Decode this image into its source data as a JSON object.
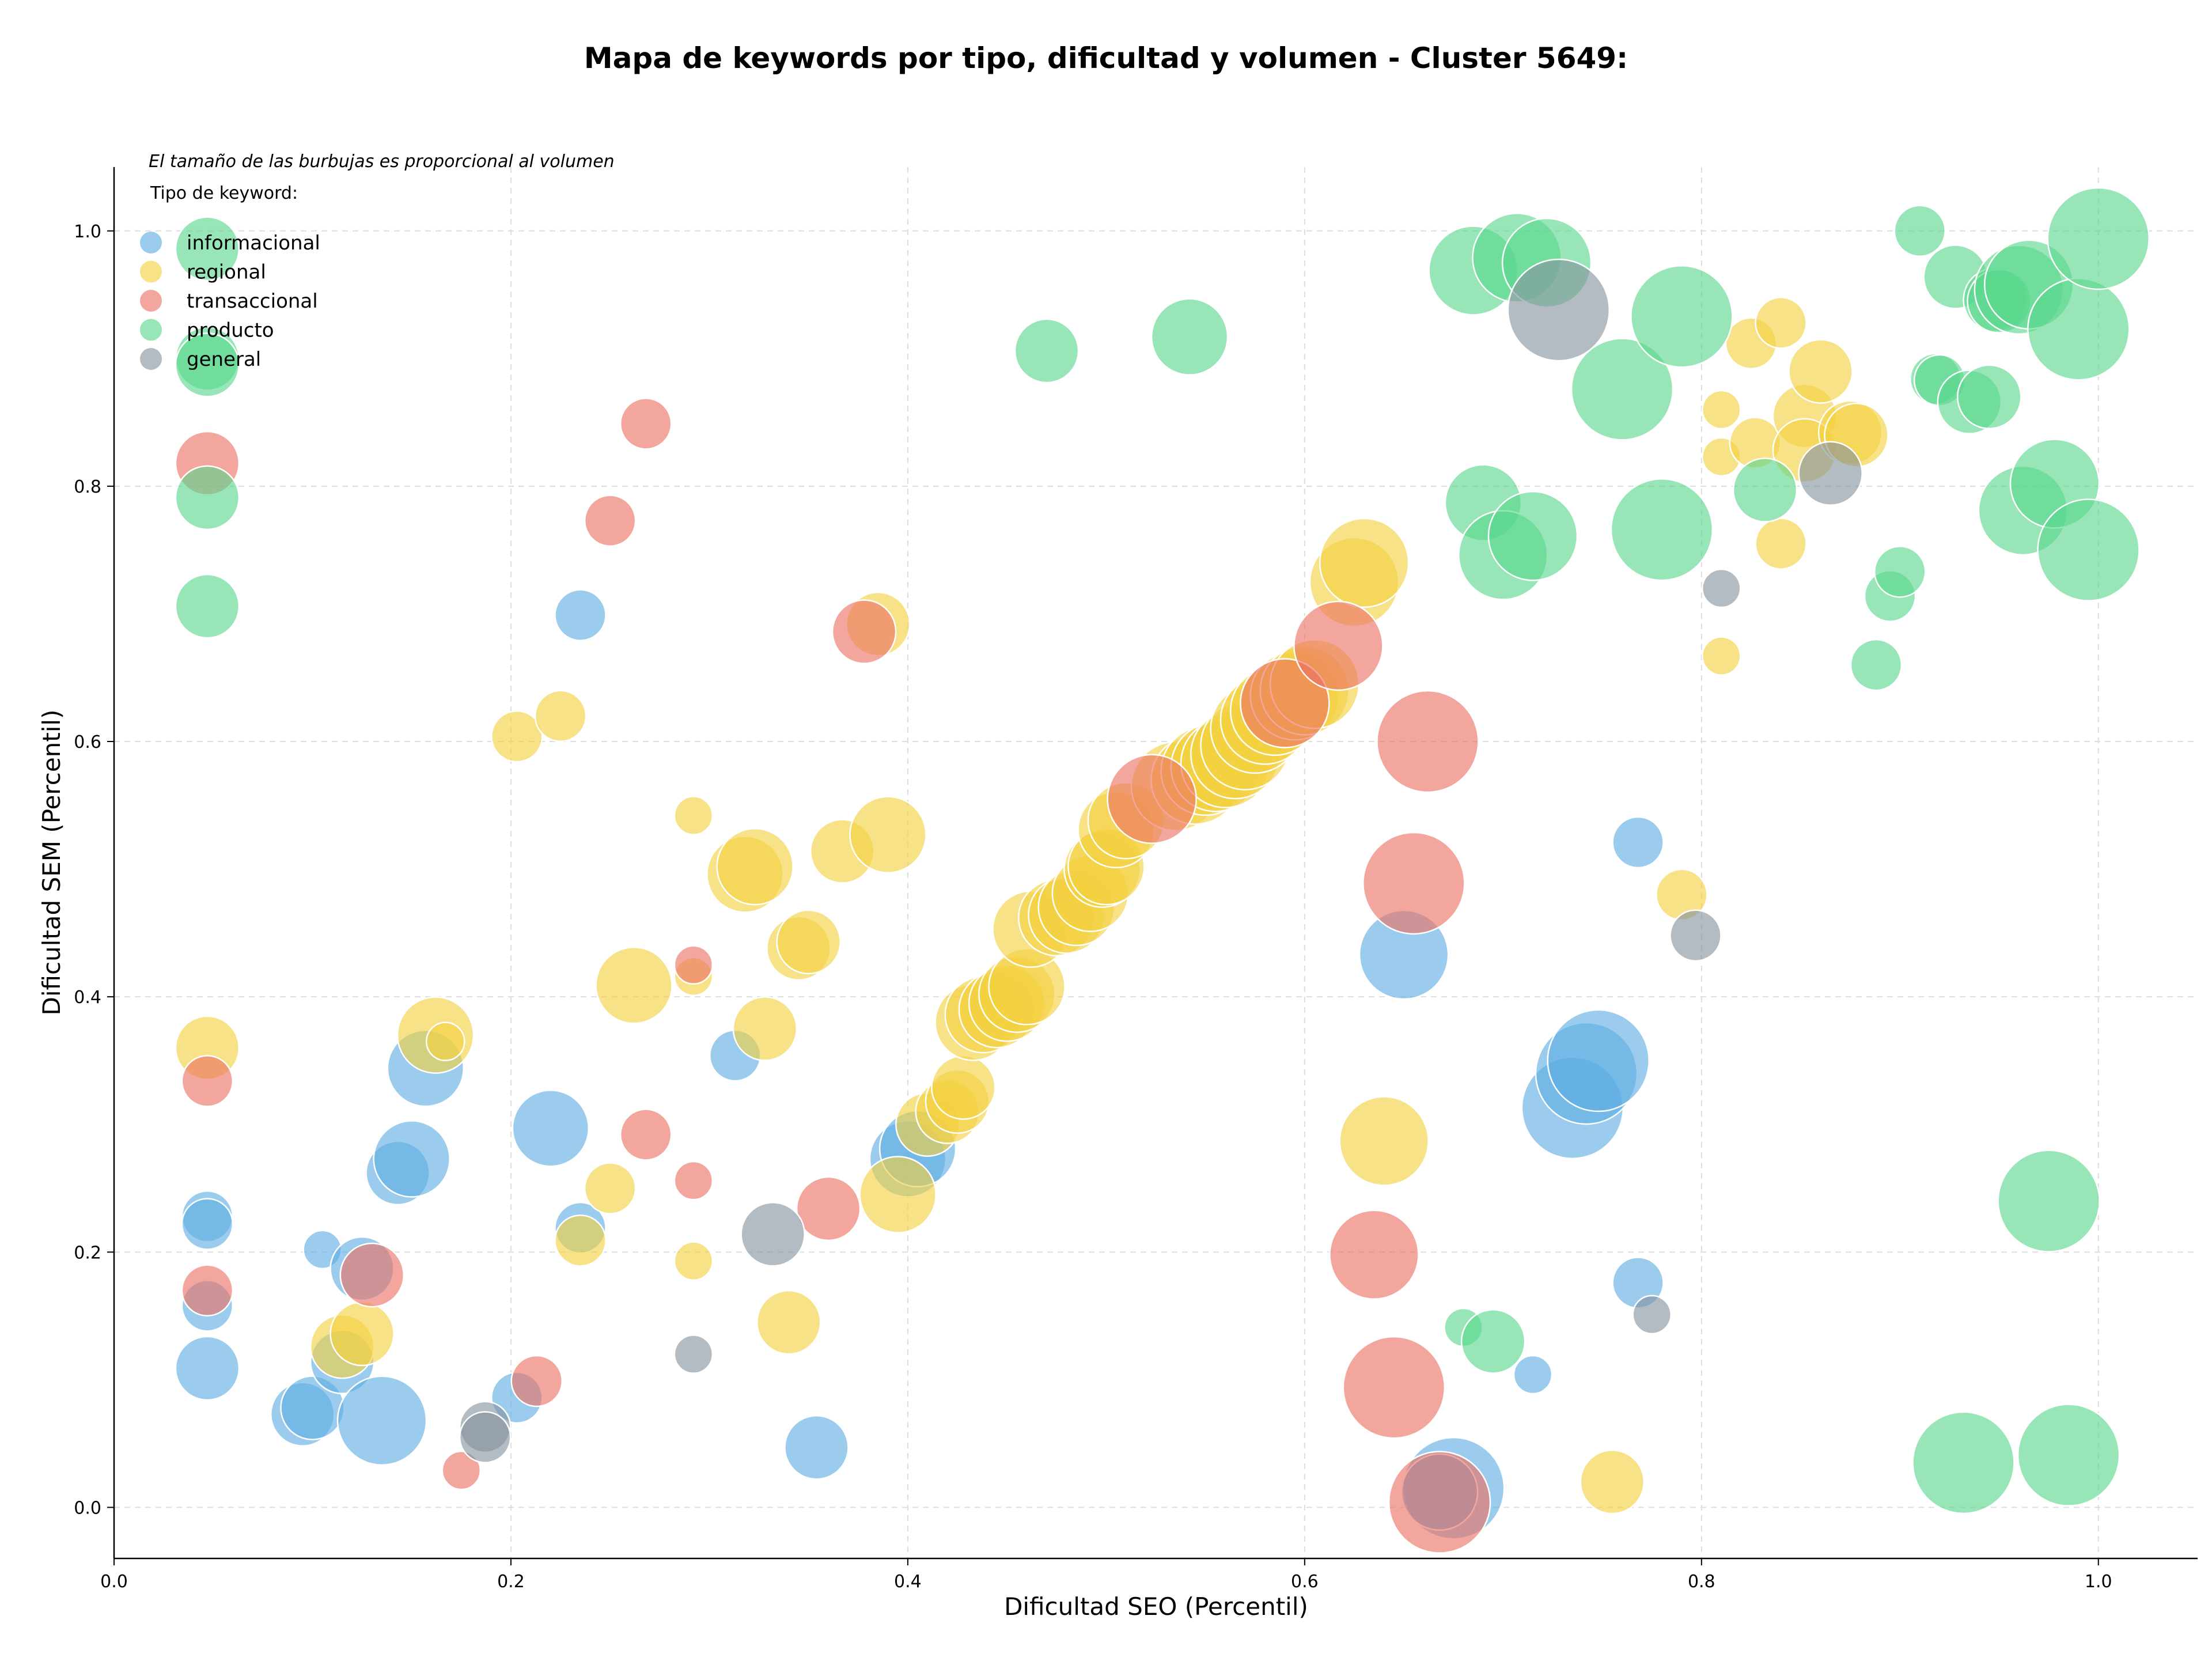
{
  "chart_data": {
    "type": "scatter",
    "title": "Mapa de keywords por tipo, dificultad y volumen - Cluster 5649:",
    "annotation": "El tamaño de las burbujas es proporcional al volumen",
    "legend_title": "Tipo de keyword:",
    "legend_position": "top-left",
    "xlabel": "Dificultad SEO (Percentil)",
    "ylabel": "Dificultad SEM (Percentil)",
    "xlim": [
      0.0,
      1.05
    ],
    "ylim": [
      -0.04,
      1.05
    ],
    "xticks": [
      "0.0",
      "0.2",
      "0.4",
      "0.6",
      "0.8",
      "1.0"
    ],
    "yticks": [
      "0.0",
      "0.2",
      "0.4",
      "0.6",
      "0.8",
      "1.0"
    ],
    "grid": true,
    "series": [
      {
        "name": "informacional",
        "color": "#5DADE2",
        "points": [
          [
            0.047,
            0.228,
            2
          ],
          [
            0.047,
            0.222,
            2
          ],
          [
            0.047,
            0.158,
            2
          ],
          [
            0.047,
            0.109,
            3
          ],
          [
            0.105,
            0.202,
            1
          ],
          [
            0.095,
            0.073,
            3
          ],
          [
            0.1,
            0.078,
            3
          ],
          [
            0.115,
            0.114,
            3
          ],
          [
            0.125,
            0.187,
            3
          ],
          [
            0.135,
            0.068,
            5
          ],
          [
            0.143,
            0.262,
            3
          ],
          [
            0.15,
            0.273,
            4
          ],
          [
            0.157,
            0.344,
            4
          ],
          [
            0.22,
            0.297,
            4
          ],
          [
            0.235,
            0.219,
            2
          ],
          [
            0.235,
            0.699,
            2
          ],
          [
            0.203,
            0.086,
            2
          ],
          [
            0.313,
            0.354,
            2
          ],
          [
            0.354,
            0.047,
            3
          ],
          [
            0.4,
            0.273,
            4
          ],
          [
            0.405,
            0.281,
            4
          ],
          [
            0.65,
            0.433,
            5
          ],
          [
            0.675,
            0.015,
            6
          ],
          [
            0.668,
            0.012,
            4
          ],
          [
            0.715,
            0.104,
            1
          ],
          [
            0.735,
            0.313,
            6
          ],
          [
            0.742,
            0.34,
            6
          ],
          [
            0.748,
            0.35,
            6
          ],
          [
            0.768,
            0.521,
            2
          ],
          [
            0.768,
            0.176,
            2
          ]
        ]
      },
      {
        "name": "regional",
        "color": "#F4D03F",
        "points": [
          [
            0.047,
            0.36,
            3
          ],
          [
            0.115,
            0.126,
            3
          ],
          [
            0.125,
            0.136,
            3
          ],
          [
            0.162,
            0.37,
            4
          ],
          [
            0.167,
            0.365,
            1
          ],
          [
            0.203,
            0.604,
            2
          ],
          [
            0.225,
            0.62,
            2
          ],
          [
            0.235,
            0.209,
            2
          ],
          [
            0.25,
            0.25,
            2
          ],
          [
            0.262,
            0.409,
            4
          ],
          [
            0.292,
            0.542,
            1
          ],
          [
            0.292,
            0.416,
            1
          ],
          [
            0.292,
            0.193,
            1
          ],
          [
            0.318,
            0.496,
            4
          ],
          [
            0.323,
            0.502,
            4
          ],
          [
            0.328,
            0.375,
            3
          ],
          [
            0.34,
            0.145,
            3
          ],
          [
            0.345,
            0.438,
            3
          ],
          [
            0.35,
            0.443,
            3
          ],
          [
            0.367,
            0.514,
            3
          ],
          [
            0.385,
            0.692,
            3
          ],
          [
            0.39,
            0.527,
            4
          ],
          [
            0.395,
            0.245,
            4
          ],
          [
            0.41,
            0.3,
            3
          ],
          [
            0.42,
            0.31,
            3
          ],
          [
            0.425,
            0.318,
            3
          ],
          [
            0.428,
            0.329,
            3
          ],
          [
            0.433,
            0.38,
            4
          ],
          [
            0.438,
            0.386,
            4
          ],
          [
            0.445,
            0.39,
            4
          ],
          [
            0.45,
            0.395,
            4
          ],
          [
            0.455,
            0.402,
            4
          ],
          [
            0.46,
            0.408,
            4
          ],
          [
            0.462,
            0.453,
            4
          ],
          [
            0.475,
            0.462,
            4
          ],
          [
            0.48,
            0.464,
            4
          ],
          [
            0.485,
            0.47,
            4
          ],
          [
            0.492,
            0.481,
            4
          ],
          [
            0.498,
            0.5,
            4
          ],
          [
            0.5,
            0.502,
            4
          ],
          [
            0.505,
            0.531,
            4
          ],
          [
            0.51,
            0.538,
            4
          ],
          [
            0.535,
            0.565,
            5
          ],
          [
            0.545,
            0.57,
            5
          ],
          [
            0.55,
            0.577,
            5
          ],
          [
            0.555,
            0.58,
            5
          ],
          [
            0.56,
            0.583,
            5
          ],
          [
            0.565,
            0.59,
            5
          ],
          [
            0.57,
            0.597,
            5
          ],
          [
            0.575,
            0.61,
            5
          ],
          [
            0.58,
            0.617,
            5
          ],
          [
            0.585,
            0.624,
            5
          ],
          [
            0.59,
            0.63,
            5
          ],
          [
            0.595,
            0.636,
            5
          ],
          [
            0.6,
            0.64,
            5
          ],
          [
            0.605,
            0.645,
            5
          ],
          [
            0.625,
            0.725,
            5
          ],
          [
            0.63,
            0.74,
            5
          ],
          [
            0.64,
            0.287,
            5
          ],
          [
            0.755,
            0.02,
            3
          ],
          [
            0.79,
            0.48,
            2
          ],
          [
            0.81,
            0.86,
            1
          ],
          [
            0.81,
            0.823,
            1
          ],
          [
            0.81,
            0.667,
            1
          ],
          [
            0.825,
            0.912,
            2
          ],
          [
            0.827,
            0.834,
            2
          ],
          [
            0.84,
            0.755,
            2
          ],
          [
            0.84,
            0.928,
            2
          ],
          [
            0.852,
            0.855,
            3
          ],
          [
            0.852,
            0.828,
            3
          ],
          [
            0.86,
            0.89,
            3
          ],
          [
            0.875,
            0.842,
            3
          ],
          [
            0.878,
            0.84,
            3
          ]
        ]
      },
      {
        "name": "transaccional",
        "color": "#EC7063",
        "points": [
          [
            0.047,
            0.818,
            3
          ],
          [
            0.047,
            0.334,
            2
          ],
          [
            0.047,
            0.17,
            2
          ],
          [
            0.13,
            0.182,
            3
          ],
          [
            0.175,
            0.029,
            1
          ],
          [
            0.213,
            0.099,
            2
          ],
          [
            0.268,
            0.849,
            2
          ],
          [
            0.268,
            0.292,
            2
          ],
          [
            0.292,
            0.256,
            1
          ],
          [
            0.36,
            0.234,
            3
          ],
          [
            0.635,
            0.198,
            5
          ],
          [
            0.645,
            0.094,
            6
          ],
          [
            0.655,
            0.489,
            6
          ],
          [
            0.662,
            0.6,
            6
          ],
          [
            0.668,
            0.004,
            6
          ],
          [
            0.25,
            0.773,
            2
          ],
          [
            0.292,
            0.425,
            1
          ],
          [
            0.378,
            0.686,
            3
          ],
          [
            0.523,
            0.555,
            5
          ],
          [
            0.59,
            0.63,
            5
          ],
          [
            0.617,
            0.675,
            5
          ]
        ]
      },
      {
        "name": "producto",
        "color": "#58D68D",
        "points": [
          [
            0.047,
            0.986,
            3
          ],
          [
            0.047,
            0.9,
            3
          ],
          [
            0.047,
            0.895,
            3
          ],
          [
            0.047,
            0.791,
            3
          ],
          [
            0.047,
            0.706,
            3
          ],
          [
            0.47,
            0.906,
            3
          ],
          [
            0.542,
            0.917,
            4
          ],
          [
            0.68,
            0.141,
            1
          ],
          [
            0.685,
            0.969,
            5
          ],
          [
            0.69,
            0.787,
            4
          ],
          [
            0.695,
            0.13,
            3
          ],
          [
            0.7,
            0.746,
            5
          ],
          [
            0.707,
            0.979,
            5
          ],
          [
            0.715,
            0.761,
            5
          ],
          [
            0.722,
            0.975,
            5
          ],
          [
            0.76,
            0.876,
            6
          ],
          [
            0.78,
            0.766,
            6
          ],
          [
            0.79,
            0.933,
            6
          ],
          [
            0.832,
            0.797,
            3
          ],
          [
            0.888,
            0.66,
            2
          ],
          [
            0.895,
            0.714,
            2
          ],
          [
            0.9,
            0.733,
            2
          ],
          [
            0.91,
            1.0,
            2
          ],
          [
            0.918,
            0.884,
            2
          ],
          [
            0.92,
            0.883,
            2
          ],
          [
            0.928,
            0.964,
            3
          ],
          [
            0.932,
            0.035,
            6
          ],
          [
            0.935,
            0.866,
            3
          ],
          [
            0.945,
            0.87,
            3
          ],
          [
            0.948,
            0.946,
            3
          ],
          [
            0.95,
            0.945,
            3
          ],
          [
            0.96,
            0.954,
            5
          ],
          [
            0.962,
            0.781,
            5
          ],
          [
            0.965,
            0.958,
            5
          ],
          [
            0.975,
            0.24,
            6
          ],
          [
            0.978,
            0.802,
            5
          ],
          [
            0.985,
            0.041,
            6
          ],
          [
            0.99,
            0.923,
            6
          ],
          [
            0.995,
            0.75,
            6
          ],
          [
            1.0,
            0.994,
            6
          ]
        ]
      },
      {
        "name": "general",
        "color": "#85929E",
        "points": [
          [
            0.187,
            0.063,
            2
          ],
          [
            0.187,
            0.055,
            2
          ],
          [
            0.292,
            0.12,
            1
          ],
          [
            0.332,
            0.214,
            3
          ],
          [
            0.728,
            0.938,
            6
          ],
          [
            0.775,
            0.151,
            1
          ],
          [
            0.797,
            0.448,
            2
          ],
          [
            0.81,
            0.72,
            1
          ],
          [
            0.865,
            0.81,
            3
          ]
        ]
      }
    ]
  }
}
